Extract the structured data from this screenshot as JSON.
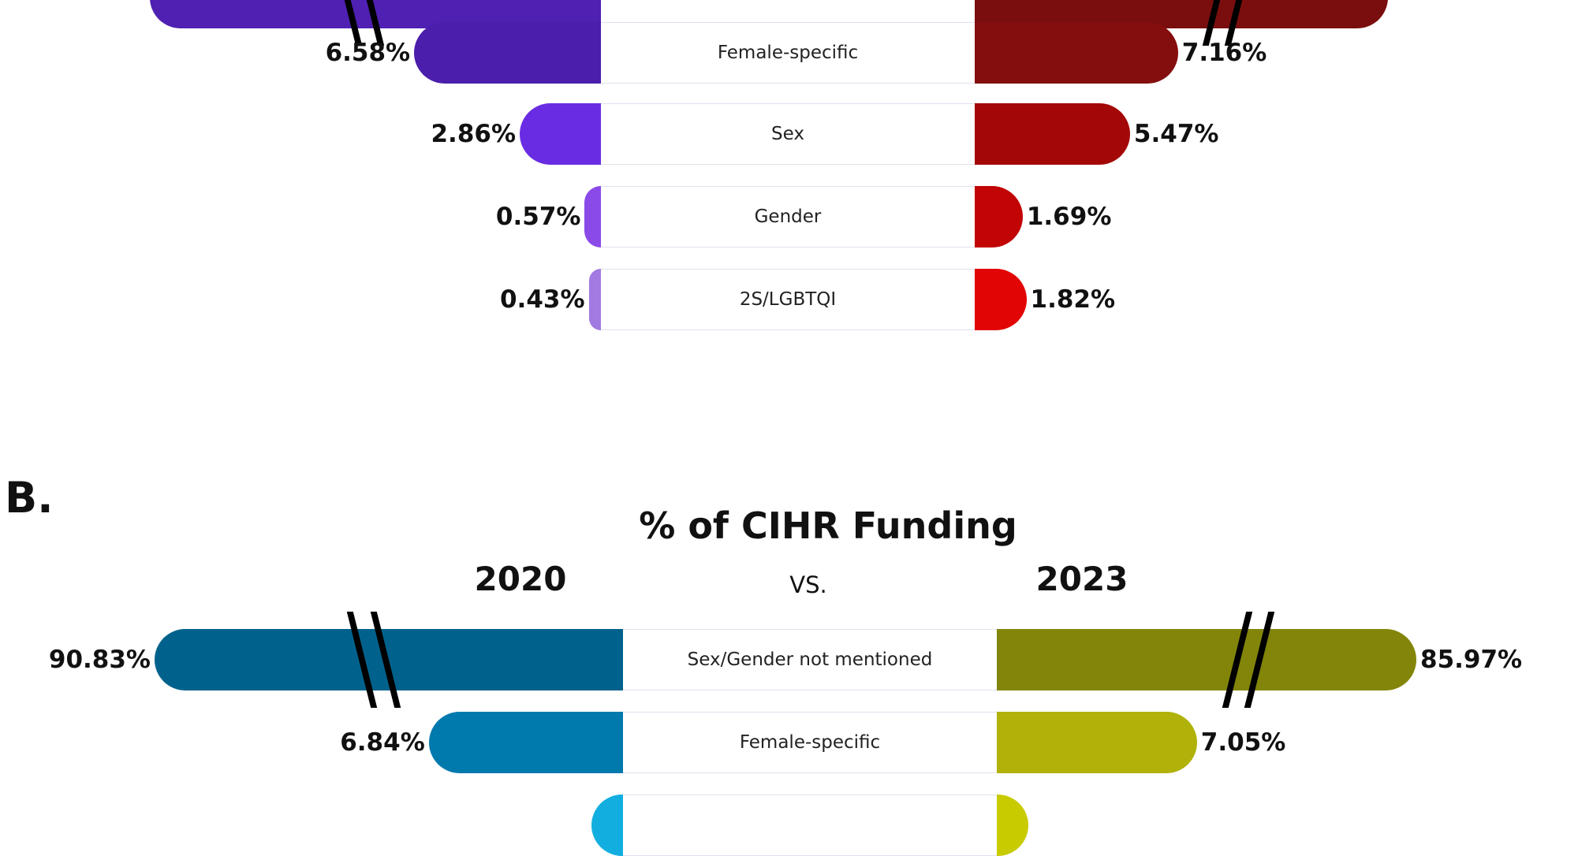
{
  "chart_data": [
    {
      "panel": "",
      "type": "bar",
      "title": "",
      "years": [
        "",
        ""
      ],
      "vs": "",
      "categories": [
        "",
        "Female-specific",
        "Sex",
        "Gender",
        "2S/LGBTQI"
      ],
      "series": [
        {
          "values": [
            null,
            6.58,
            2.86,
            0.57,
            0.43
          ],
          "labels": [
            "",
            "6.58%",
            "2.86%",
            "0.57%",
            "0.43%"
          ],
          "colors": [
            "#4f20b2",
            "#4b1eab",
            "#6a2ce3",
            "#8a4ae8",
            "#a27ae2"
          ]
        },
        {
          "values": [
            null,
            7.16,
            5.47,
            1.69,
            1.82
          ],
          "labels": [
            "",
            "7.16%",
            "5.47%",
            "1.69%",
            "1.82%"
          ],
          "colors": [
            "#7a0e0e",
            "#840d0e",
            "#a30707",
            "#c20404",
            "#e20505"
          ]
        }
      ],
      "axis_break_on_first_row": true
    },
    {
      "panel": "B.",
      "type": "bar",
      "title": "% of CIHR Funding",
      "years": [
        "2020",
        "2023"
      ],
      "vs": "VS.",
      "categories": [
        "Sex/Gender not mentioned",
        "Female-specific",
        ""
      ],
      "series": [
        {
          "name": "2020",
          "values": [
            90.83,
            6.84,
            null
          ],
          "labels": [
            "90.83%",
            "6.84%",
            ""
          ],
          "colors": [
            "#00628c",
            "#0079ad",
            "#12aee0"
          ]
        },
        {
          "name": "2023",
          "values": [
            85.97,
            7.05,
            null
          ],
          "labels": [
            "85.97%",
            "7.05%",
            ""
          ],
          "colors": [
            "#83850a",
            "#b0b20a",
            "#c7cb00"
          ]
        }
      ],
      "axis_break_on_first_row": true
    }
  ]
}
